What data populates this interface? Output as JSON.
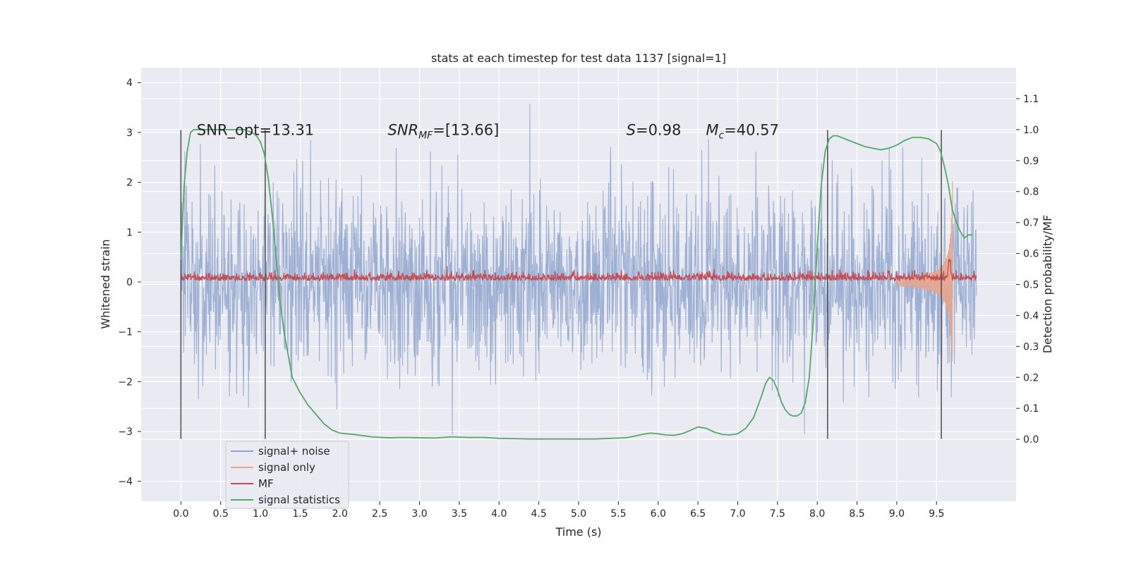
{
  "chart_data": {
    "type": "line",
    "title": "stats at each timestep for test data 1137 [signal=1]",
    "xlabel": "Time (s)",
    "ylabel": "Whitened strain",
    "y2label": "Detection probability/MF",
    "xlim": [
      -0.5,
      10.5
    ],
    "ylim": [
      -4.4,
      4.3
    ],
    "y2lim": [
      -0.2,
      1.2
    ],
    "xticks": [
      0.0,
      0.5,
      1.0,
      1.5,
      2.0,
      2.5,
      3.0,
      3.5,
      4.0,
      4.5,
      5.0,
      5.5,
      6.0,
      6.5,
      7.0,
      7.5,
      8.0,
      8.5,
      9.0,
      9.5
    ],
    "xtick_labels": [
      "0.0",
      "0.5",
      "1.0",
      "1.5",
      "2.0",
      "2.5",
      "3.0",
      "3.5",
      "4.0",
      "4.5",
      "5.0",
      "5.5",
      "6.0",
      "6.5",
      "7.0",
      "7.5",
      "8.0",
      "8.5",
      "9.0",
      "9.5"
    ],
    "yticks": [
      -4,
      -3,
      -2,
      -1,
      0,
      1,
      2,
      3,
      4
    ],
    "ytick_labels": [
      "−4",
      "−3",
      "−2",
      "−1",
      "0",
      "1",
      "2",
      "3",
      "4"
    ],
    "y2ticks": [
      0.0,
      0.1,
      0.2,
      0.3,
      0.4,
      0.5,
      0.6,
      0.7,
      0.8,
      0.9,
      1.0,
      1.1
    ],
    "y2tick_labels": [
      "0.0",
      "0.1",
      "0.2",
      "0.3",
      "0.4",
      "0.5",
      "0.6",
      "0.7",
      "0.8",
      "0.9",
      "1.0",
      "1.1"
    ],
    "grid": true,
    "legend": {
      "placement": "lower-left",
      "entries": [
        {
          "name": "signal+ noise",
          "color": "#8fa4cc"
        },
        {
          "name": "signal only",
          "color": "#e8a58a"
        },
        {
          "name": "MF",
          "color": "#c44e52"
        },
        {
          "name": "signal statistics",
          "color": "#55a868"
        }
      ]
    },
    "annotations": [
      {
        "text": "SNR_opt=13.31",
        "x": 0.2,
        "y": 3.05
      },
      {
        "text_main": "SNR",
        "text_sub": "MF",
        "text_rest": "=[13.66]",
        "x": 2.6,
        "y": 3.05
      },
      {
        "text_main": "S",
        "text_sub": "",
        "text_rest": "=0.98",
        "x": 5.6,
        "y": 3.05
      },
      {
        "text_main": "M",
        "text_sub": "c",
        "text_rest": "=40.57",
        "x": 6.6,
        "y": 3.05
      }
    ],
    "vlines": {
      "x": [
        0.0,
        1.06,
        8.13,
        9.56
      ],
      "ymin": -3.15,
      "ymax": 3.05,
      "color": "#555555"
    },
    "series": [
      {
        "name": "signal statistics",
        "axis": "y2",
        "color": "#55a868",
        "x": [
          0.0,
          0.04,
          0.08,
          0.12,
          0.16,
          0.2,
          0.3,
          0.4,
          0.5,
          0.6,
          0.7,
          0.8,
          0.9,
          0.95,
          1.0,
          1.05,
          1.1,
          1.15,
          1.2,
          1.25,
          1.3,
          1.35,
          1.4,
          1.5,
          1.6,
          1.7,
          1.8,
          1.9,
          2.0,
          2.2,
          2.4,
          2.6,
          2.8,
          3.0,
          3.2,
          3.4,
          3.6,
          3.8,
          4.0,
          4.2,
          4.4,
          4.6,
          4.8,
          5.0,
          5.2,
          5.4,
          5.6,
          5.7,
          5.8,
          5.9,
          6.0,
          6.1,
          6.2,
          6.3,
          6.4,
          6.5,
          6.6,
          6.7,
          6.8,
          6.9,
          7.0,
          7.1,
          7.2,
          7.3,
          7.35,
          7.4,
          7.45,
          7.5,
          7.55,
          7.6,
          7.65,
          7.7,
          7.75,
          7.8,
          7.85,
          7.9,
          7.95,
          8.0,
          8.05,
          8.1,
          8.15,
          8.2,
          8.25,
          8.3,
          8.4,
          8.5,
          8.6,
          8.7,
          8.8,
          8.9,
          9.0,
          9.1,
          9.2,
          9.3,
          9.4,
          9.5,
          9.55,
          9.6,
          9.65,
          9.7,
          9.75,
          9.8,
          9.85,
          9.9,
          9.95
        ],
        "y": [
          0.58,
          0.82,
          0.93,
          0.99,
          1.0,
          1.0,
          1.0,
          1.0,
          1.0,
          1.0,
          1.0,
          1.0,
          0.99,
          0.98,
          0.96,
          0.92,
          0.84,
          0.72,
          0.58,
          0.44,
          0.34,
          0.27,
          0.2,
          0.15,
          0.11,
          0.08,
          0.05,
          0.03,
          0.02,
          0.015,
          0.008,
          0.005,
          0.006,
          0.005,
          0.004,
          0.008,
          0.006,
          0.006,
          0.003,
          0.002,
          0.001,
          0.001,
          0.001,
          0.001,
          0.001,
          0.003,
          0.005,
          0.01,
          0.016,
          0.02,
          0.018,
          0.014,
          0.013,
          0.018,
          0.028,
          0.04,
          0.036,
          0.024,
          0.016,
          0.014,
          0.018,
          0.035,
          0.07,
          0.14,
          0.18,
          0.2,
          0.19,
          0.16,
          0.12,
          0.095,
          0.08,
          0.075,
          0.076,
          0.085,
          0.12,
          0.2,
          0.38,
          0.62,
          0.82,
          0.93,
          0.97,
          0.98,
          0.98,
          0.975,
          0.965,
          0.955,
          0.945,
          0.94,
          0.935,
          0.94,
          0.95,
          0.965,
          0.975,
          0.975,
          0.97,
          0.955,
          0.93,
          0.88,
          0.82,
          0.74,
          0.7,
          0.67,
          0.65,
          0.66,
          0.66
        ]
      }
    ]
  }
}
